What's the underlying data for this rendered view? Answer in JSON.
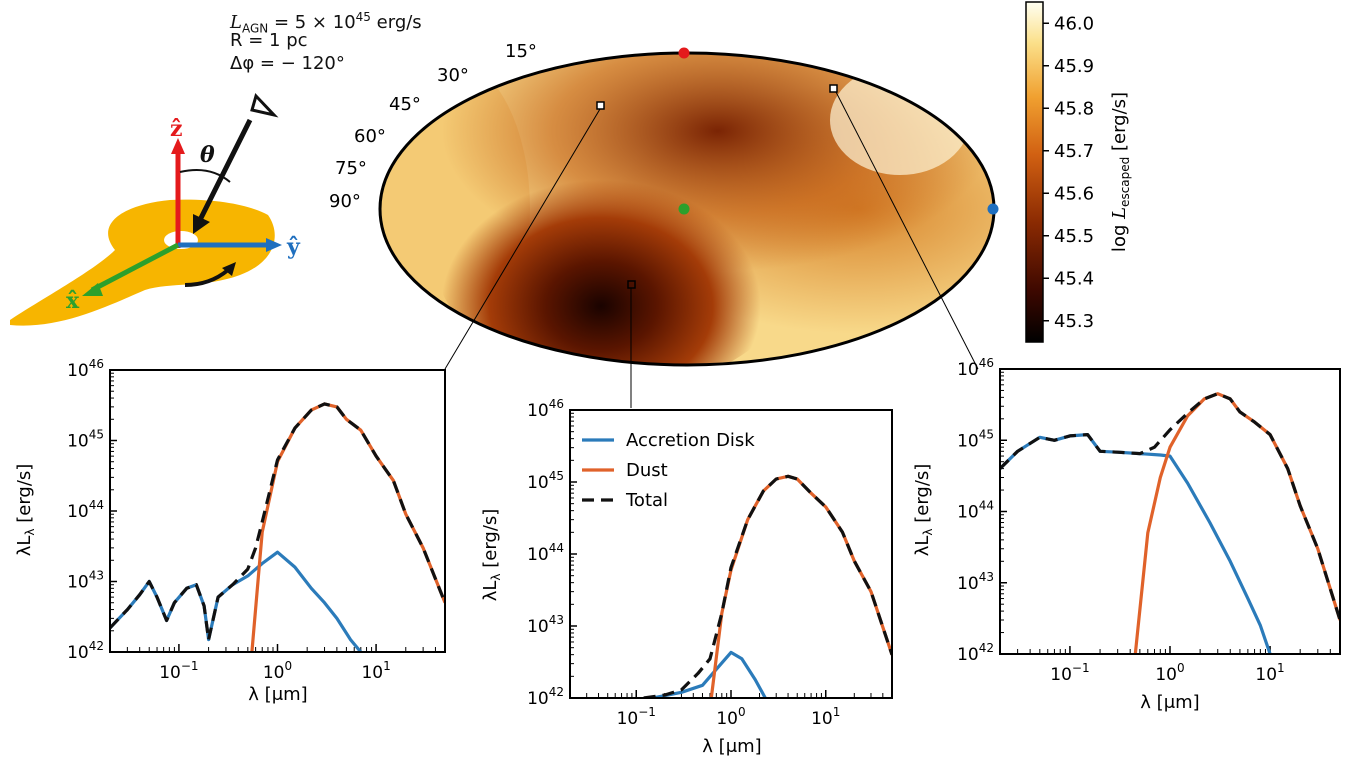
{
  "params": {
    "l_agn": "L_AGN = 5 × 10^45 erg/s",
    "r": "R = 1 pc",
    "dphi": "Δφ = − 120°"
  },
  "schematic": {
    "axis_z": "ẑ",
    "axis_y": "ŷ",
    "axis_x": "x̂",
    "angle": "θ",
    "colors": {
      "z": "#e41a1c",
      "y": "#1f6fbf",
      "x": "#2ca02c",
      "disk": "#f7b500"
    }
  },
  "skymap": {
    "theta_labels": [
      "15°",
      "30°",
      "45°",
      "60°",
      "75°",
      "90°"
    ],
    "markers": [
      {
        "name": "red",
        "color": "#e41a1c"
      },
      {
        "name": "green",
        "color": "#2ca02c"
      },
      {
        "name": "blue",
        "color": "#1f6fbf"
      }
    ]
  },
  "colorbar": {
    "label": "log L_escaped [erg/s]",
    "ticks": [
      "46.0",
      "45.9",
      "45.8",
      "45.7",
      "45.6",
      "45.5",
      "45.4",
      "45.3"
    ],
    "tick_values": [
      46.0,
      45.9,
      45.8,
      45.7,
      45.6,
      45.5,
      45.4,
      45.3
    ],
    "range": [
      45.25,
      46.05
    ],
    "colormap": "afmhot"
  },
  "chart_data": [
    {
      "type": "line",
      "panel": "left",
      "xlabel": "λ [μm]",
      "ylabel": "λL_λ [erg/s]",
      "xscale": "log",
      "yscale": "log",
      "xlim": [
        0.02,
        50
      ],
      "ylim": [
        1e+42,
        1e+46
      ],
      "xticks": [
        "10^−1",
        "10^0",
        "10^1"
      ],
      "yticks": [
        "10^42",
        "10^43",
        "10^44",
        "10^45",
        "10^46"
      ],
      "series": [
        {
          "name": "Accretion Disk",
          "color": "#2b7bba",
          "points": [
            [
              0.02,
              2.2e+42
            ],
            [
              0.03,
              4e+42
            ],
            [
              0.04,
              6.5e+42
            ],
            [
              0.05,
              1e+43
            ],
            [
              0.06,
              6e+42
            ],
            [
              0.075,
              2.8e+42
            ],
            [
              0.09,
              5e+42
            ],
            [
              0.12,
              8e+42
            ],
            [
              0.15,
              9e+42
            ],
            [
              0.18,
              4.5e+42
            ],
            [
              0.2,
              1.5e+42
            ],
            [
              0.25,
              6e+42
            ],
            [
              0.35,
              9e+42
            ],
            [
              0.5,
              1.2e+43
            ],
            [
              0.7,
              1.8e+43
            ],
            [
              1.0,
              2.6e+43
            ],
            [
              1.5,
              1.6e+43
            ],
            [
              2.2,
              8e+42
            ],
            [
              3.0,
              5e+42
            ],
            [
              4.0,
              3e+42
            ],
            [
              5.5,
              1.5e+42
            ],
            [
              7.0,
              1e+42
            ]
          ]
        },
        {
          "name": "Dust",
          "color": "#e0622a",
          "points": [
            [
              0.55,
              1e+42
            ],
            [
              0.7,
              5e+43
            ],
            [
              1.0,
              5e+44
            ],
            [
              1.5,
              1.5e+45
            ],
            [
              2.2,
              2.7e+45
            ],
            [
              3.0,
              3.3e+45
            ],
            [
              4.0,
              3e+45
            ],
            [
              5.0,
              2e+45
            ],
            [
              7.0,
              1.4e+45
            ],
            [
              10,
              6e+44
            ],
            [
              15,
              2.7e+44
            ],
            [
              20,
              9e+43
            ],
            [
              30,
              3e+43
            ],
            [
              50,
              5e+42
            ]
          ]
        },
        {
          "name": "Total",
          "color": "#111111",
          "dash": true,
          "points": [
            [
              0.02,
              2.2e+42
            ],
            [
              0.03,
              4e+42
            ],
            [
              0.04,
              6.5e+42
            ],
            [
              0.05,
              1e+43
            ],
            [
              0.06,
              6e+42
            ],
            [
              0.075,
              2.8e+42
            ],
            [
              0.09,
              5e+42
            ],
            [
              0.12,
              8e+42
            ],
            [
              0.15,
              9e+42
            ],
            [
              0.18,
              4.5e+42
            ],
            [
              0.2,
              1.5e+42
            ],
            [
              0.25,
              6e+42
            ],
            [
              0.35,
              9e+42
            ],
            [
              0.5,
              1.5e+43
            ],
            [
              0.6,
              3e+43
            ],
            [
              0.7,
              7e+43
            ],
            [
              1.0,
              5.3e+44
            ],
            [
              1.5,
              1.5e+45
            ],
            [
              2.2,
              2.7e+45
            ],
            [
              3.0,
              3.3e+45
            ],
            [
              4.0,
              3e+45
            ],
            [
              5.0,
              2e+45
            ],
            [
              7.0,
              1.4e+45
            ],
            [
              10,
              6e+44
            ],
            [
              15,
              2.7e+44
            ],
            [
              20,
              9e+43
            ],
            [
              30,
              3e+43
            ],
            [
              50,
              5e+42
            ]
          ]
        }
      ]
    },
    {
      "type": "line",
      "panel": "middle",
      "xlabel": "λ [μm]",
      "ylabel": "λL_λ [erg/s]",
      "xscale": "log",
      "yscale": "log",
      "xlim": [
        0.02,
        50
      ],
      "ylim": [
        1e+42,
        1e+46
      ],
      "xticks": [
        "10^−1",
        "10^0",
        "10^1"
      ],
      "yticks": [
        "10^42",
        "10^43",
        "10^44",
        "10^45",
        "10^46"
      ],
      "legend": {
        "location": "upper-left",
        "entries": [
          "Accretion Disk",
          "Dust",
          "Total"
        ]
      },
      "series": [
        {
          "name": "Accretion Disk",
          "color": "#2b7bba",
          "points": [
            [
              0.15,
              1e+42
            ],
            [
              0.3,
              1.2e+42
            ],
            [
              0.5,
              1.5e+42
            ],
            [
              0.7,
              2.5e+42
            ],
            [
              1.0,
              4.3e+42
            ],
            [
              1.3,
              3.5e+42
            ],
            [
              1.8,
              1.8e+42
            ],
            [
              2.3,
              1e+42
            ]
          ]
        },
        {
          "name": "Dust",
          "color": "#e0622a",
          "points": [
            [
              0.62,
              1e+42
            ],
            [
              0.8,
              1.5e+43
            ],
            [
              1.0,
              6e+43
            ],
            [
              1.5,
              3e+44
            ],
            [
              2.2,
              7.5e+44
            ],
            [
              3.0,
              1.1e+45
            ],
            [
              4.0,
              1.2e+45
            ],
            [
              5.0,
              1.1e+45
            ],
            [
              7.0,
              7e+44
            ],
            [
              10,
              4.5e+44
            ],
            [
              15,
              2e+44
            ],
            [
              20,
              8e+43
            ],
            [
              30,
              3e+43
            ],
            [
              50,
              4e+42
            ]
          ]
        },
        {
          "name": "Total",
          "color": "#111111",
          "dash": true,
          "points": [
            [
              0.12,
              1e+42
            ],
            [
              0.2,
              1.1e+42
            ],
            [
              0.3,
              1.3e+42
            ],
            [
              0.45,
              2.2e+42
            ],
            [
              0.6,
              3.5e+42
            ],
            [
              0.8,
              1.5e+43
            ],
            [
              1.0,
              6.5e+43
            ],
            [
              1.5,
              3e+44
            ],
            [
              2.2,
              7.5e+44
            ],
            [
              3.0,
              1.1e+45
            ],
            [
              4.0,
              1.2e+45
            ],
            [
              5.0,
              1.1e+45
            ],
            [
              7.0,
              7e+44
            ],
            [
              10,
              4.5e+44
            ],
            [
              15,
              2e+44
            ],
            [
              20,
              8e+43
            ],
            [
              30,
              3e+43
            ],
            [
              50,
              4e+42
            ]
          ]
        }
      ]
    },
    {
      "type": "line",
      "panel": "right",
      "xlabel": "λ [μm]",
      "ylabel": "λL_λ [erg/s]",
      "xscale": "log",
      "yscale": "log",
      "xlim": [
        0.02,
        50
      ],
      "ylim": [
        1e+42,
        1e+46
      ],
      "xticks": [
        "10^−1",
        "10^0",
        "10^1"
      ],
      "yticks": [
        "10^42",
        "10^43",
        "10^44",
        "10^45",
        "10^46"
      ],
      "series": [
        {
          "name": "Accretion Disk",
          "color": "#2b7bba",
          "points": [
            [
              0.02,
              4e+44
            ],
            [
              0.03,
              7e+44
            ],
            [
              0.05,
              1.1e+45
            ],
            [
              0.07,
              1e+45
            ],
            [
              0.1,
              1.15e+45
            ],
            [
              0.15,
              1.2e+45
            ],
            [
              0.2,
              7e+44
            ],
            [
              0.3,
              6.8e+44
            ],
            [
              0.5,
              6.5e+44
            ],
            [
              0.8,
              6.2e+44
            ],
            [
              1.0,
              6e+44
            ],
            [
              1.5,
              2.5e+44
            ],
            [
              2.5,
              7e+43
            ],
            [
              4.0,
              2e+43
            ],
            [
              6.0,
              6e+42
            ],
            [
              8.0,
              2.5e+42
            ],
            [
              10,
              1e+42
            ]
          ]
        },
        {
          "name": "Dust",
          "color": "#e0622a",
          "points": [
            [
              0.45,
              1e+42
            ],
            [
              0.6,
              5e+43
            ],
            [
              0.8,
              3e+44
            ],
            [
              1.0,
              8e+44
            ],
            [
              1.5,
              2.2e+45
            ],
            [
              2.2,
              3.8e+45
            ],
            [
              3.0,
              4.5e+45
            ],
            [
              4.0,
              3.8e+45
            ],
            [
              5.0,
              2.5e+45
            ],
            [
              7.0,
              1.8e+45
            ],
            [
              10,
              1.2e+45
            ],
            [
              15,
              4e+44
            ],
            [
              20,
              1.2e+44
            ],
            [
              30,
              3e+43
            ],
            [
              50,
              3e+42
            ]
          ]
        },
        {
          "name": "Total",
          "color": "#111111",
          "dash": true,
          "points": [
            [
              0.02,
              4e+44
            ],
            [
              0.03,
              7e+44
            ],
            [
              0.05,
              1.1e+45
            ],
            [
              0.07,
              1e+45
            ],
            [
              0.1,
              1.15e+45
            ],
            [
              0.15,
              1.2e+45
            ],
            [
              0.2,
              7e+44
            ],
            [
              0.3,
              6.8e+44
            ],
            [
              0.5,
              6.5e+44
            ],
            [
              0.7,
              8e+44
            ],
            [
              1.0,
              1.4e+45
            ],
            [
              1.5,
              2.4e+45
            ],
            [
              2.2,
              3.8e+45
            ],
            [
              3.0,
              4.5e+45
            ],
            [
              4.0,
              3.8e+45
            ],
            [
              5.0,
              2.5e+45
            ],
            [
              7.0,
              1.8e+45
            ],
            [
              10,
              1.2e+45
            ],
            [
              15,
              4e+44
            ],
            [
              20,
              1.2e+44
            ],
            [
              30,
              3e+43
            ],
            [
              50,
              3e+42
            ]
          ]
        }
      ]
    }
  ]
}
